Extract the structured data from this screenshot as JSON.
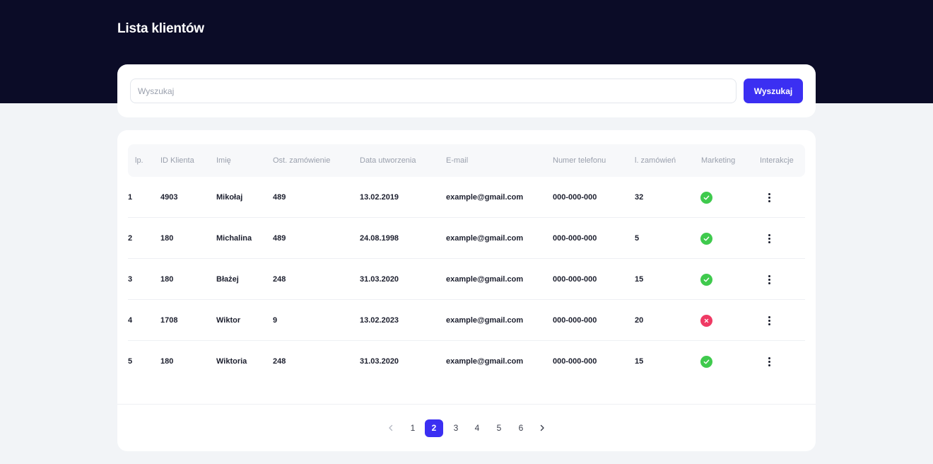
{
  "page": {
    "title": "Lista klientów"
  },
  "search": {
    "placeholder": "Wyszukaj",
    "value": "",
    "button_label": "Wyszukaj"
  },
  "table": {
    "columns": [
      "lp.",
      "ID Klienta",
      "Imię",
      "Ost. zamówienie",
      "Data utworzenia",
      "E-mail",
      "Numer telefonu",
      "l. zamówień",
      "Marketing",
      "Interakcje"
    ],
    "rows": [
      {
        "lp": "1",
        "id": "4903",
        "name": "Mikołaj",
        "last_order": "489",
        "created": "13.02.2019",
        "email": "example@gmail.com",
        "phone": "000-000-000",
        "orders": "32",
        "marketing": true
      },
      {
        "lp": "2",
        "id": "180",
        "name": "Michalina",
        "last_order": "489",
        "created": "24.08.1998",
        "email": "example@gmail.com",
        "phone": "000-000-000",
        "orders": "5",
        "marketing": true
      },
      {
        "lp": "3",
        "id": "180",
        "name": "Błażej",
        "last_order": "248",
        "created": "31.03.2020",
        "email": "example@gmail.com",
        "phone": "000-000-000",
        "orders": "15",
        "marketing": true
      },
      {
        "lp": "4",
        "id": "1708",
        "name": "Wiktor",
        "last_order": "9",
        "created": "13.02.2023",
        "email": "example@gmail.com",
        "phone": "000-000-000",
        "orders": "20",
        "marketing": false
      },
      {
        "lp": "5",
        "id": "180",
        "name": "Wiktoria",
        "last_order": "248",
        "created": "31.03.2020",
        "email": "example@gmail.com",
        "phone": "000-000-000",
        "orders": "15",
        "marketing": true
      }
    ],
    "row_action_icon": "more-vertical-icon",
    "marketing_icons": {
      "true": "check-icon",
      "false": "x-icon"
    }
  },
  "pagination": {
    "pages": [
      "1",
      "2",
      "3",
      "4",
      "5",
      "6"
    ],
    "current": "2",
    "prev_icon": "chevron-left-icon",
    "next_icon": "chevron-right-icon"
  },
  "colors": {
    "header_bg": "#0b0c27",
    "accent": "#3b2ff2",
    "success": "#3fca4d",
    "danger": "#ef3a64",
    "page_bg": "#f2f4f7"
  }
}
